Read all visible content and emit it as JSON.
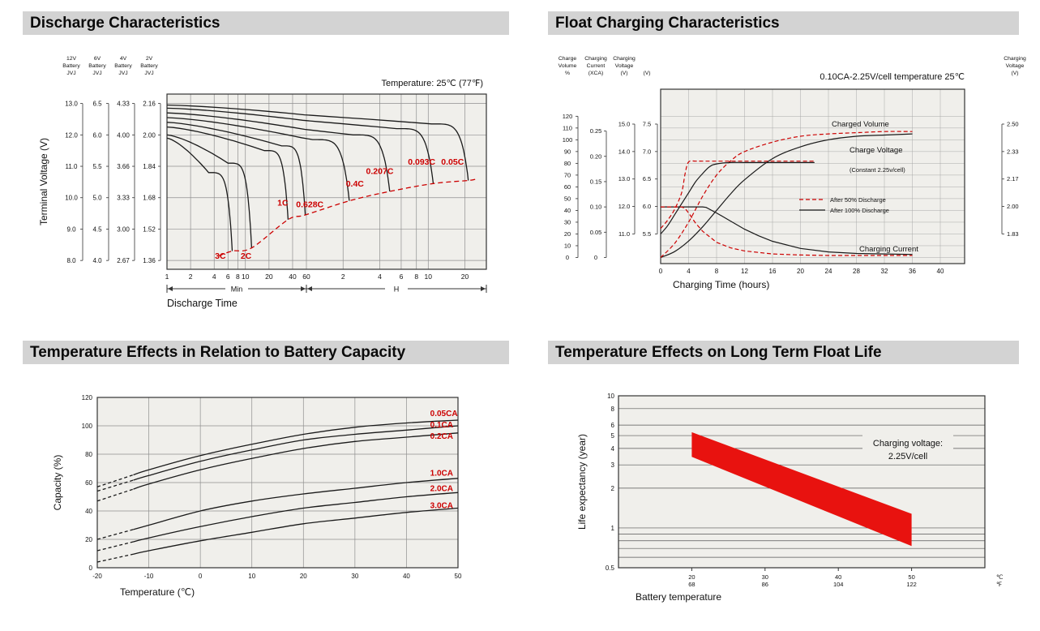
{
  "page": {
    "background": "#ffffff"
  },
  "chart_data": [
    {
      "id": "discharge-characteristics",
      "type": "line",
      "title": "Discharge Characteristics",
      "temperature_note": "Temperature: 25℃ (77℉)",
      "ylabel": "Terminal Voltage (V)",
      "xlabel": "Discharge Time",
      "x_section_labels": [
        "Min",
        "H"
      ],
      "x_ticks_min": [
        1,
        2,
        4,
        6,
        8,
        10,
        20,
        40,
        60
      ],
      "x_ticks_hours": [
        2,
        4,
        6,
        8,
        10,
        20
      ],
      "voltage_scales": [
        {
          "header": [
            "12V",
            "Battery",
            "JVJ"
          ],
          "ticks": [
            "13.0",
            "12.0",
            "11.0",
            "10.0",
            "9.0",
            "8.0"
          ]
        },
        {
          "header": [
            "6V",
            "Battery",
            "JVJ"
          ],
          "ticks": [
            "6.5",
            "6.0",
            "5.5",
            "5.0",
            "4.5",
            "4.0"
          ]
        },
        {
          "header": [
            "4V",
            "Battery",
            "JVJ"
          ],
          "ticks": [
            "4.33",
            "4.00",
            "3.66",
            "3.33",
            "3.00",
            "2.67"
          ]
        },
        {
          "header": [
            "2V",
            "Battery",
            "JVJ"
          ],
          "ticks": [
            "2.16",
            "2.00",
            "1.84",
            "1.68",
            "1.52",
            "1.36"
          ]
        }
      ],
      "grid_voltages": [
        13.0,
        12.0,
        11.0,
        10.0,
        9.0,
        8.0
      ],
      "curve_color": "#1a1a1a",
      "cutoff_color": "#cc0000",
      "curves": [
        {
          "rate": "3C",
          "t_end_min": 6.8,
          "v_start": 11.9,
          "v_plateau": 10.8,
          "v_cutoff": 8.3,
          "label_t": 4.8,
          "label_v": 8.05
        },
        {
          "rate": "2C",
          "t_end_min": 12,
          "v_start": 12.0,
          "v_plateau": 11.1,
          "v_cutoff": 8.4,
          "label_t": 10.2,
          "label_v": 8.05
        },
        {
          "rate": "1C",
          "t_end_min": 35,
          "v_start": 12.25,
          "v_plateau": 11.5,
          "v_cutoff": 9.3,
          "label_t": 30,
          "label_v": 9.75
        },
        {
          "rate": "0.628C",
          "t_end_min": 58,
          "v_start": 12.4,
          "v_plateau": 11.65,
          "v_cutoff": 9.45,
          "label_t": 64,
          "label_v": 9.7
        },
        {
          "rate": "0.4C",
          "t_end_min": 135,
          "v_start": 12.55,
          "v_plateau": 11.85,
          "v_cutoff": 9.9,
          "label_t": 150,
          "label_v": 10.35
        },
        {
          "rate": "0.207C",
          "t_end_min": 290,
          "v_start": 12.7,
          "v_plateau": 12.0,
          "v_cutoff": 10.2,
          "label_t": 240,
          "label_v": 10.75
        },
        {
          "rate": "0.093C",
          "t_end_min": 660,
          "v_start": 12.85,
          "v_plateau": 12.2,
          "v_cutoff": 10.45,
          "label_t": 530,
          "label_v": 11.05
        },
        {
          "rate": "0.05C",
          "t_end_min": 1280,
          "v_start": 12.95,
          "v_plateau": 12.35,
          "v_cutoff": 10.55,
          "label_t": 950,
          "label_v": 11.05
        }
      ]
    },
    {
      "id": "float-charging-characteristics",
      "type": "line",
      "title": "Float Charging Characteristics",
      "condition_note": "0.10CA-2.25V/cell  temperature 25℃",
      "xlabel": "Charging Time (hours)",
      "x_ticks": [
        0,
        4,
        8,
        12,
        16,
        20,
        24,
        28,
        32,
        36,
        40
      ],
      "left_scales": [
        {
          "header": [
            "Charge",
            "Volume",
            "%"
          ],
          "ticks": [
            "120",
            "110",
            "100",
            "90",
            "80",
            "70",
            "60",
            "50",
            "40",
            "30",
            "20",
            "10",
            "0"
          ]
        },
        {
          "header": [
            "Charging",
            "Current",
            "(XCA)"
          ],
          "ticks": [
            "0.25",
            "0.20",
            "0.15",
            "0.10",
            "0.05",
            "0"
          ]
        },
        {
          "header": [
            "Charging",
            "Voltage",
            "(V)"
          ],
          "ticks": [
            "15.0",
            "14.0",
            "13.0",
            "12.0",
            "11.0"
          ]
        },
        {
          "header": [
            "",
            "",
            "(V)"
          ],
          "ticks": [
            "7.5",
            "7.0",
            "6.5",
            "6.0",
            "5.5"
          ]
        }
      ],
      "right_scale": {
        "header": [
          "Charging",
          "Voltage",
          "(V)"
        ],
        "ticks": [
          "2.50",
          "2.33",
          "2.17",
          "2.00",
          "1.83"
        ]
      },
      "legend": [
        {
          "label": "After  50% Discharge",
          "style": "dashed",
          "color": "#cc0000"
        },
        {
          "label": "After 100% Discharge",
          "style": "solid",
          "color": "#1a1a1a"
        }
      ],
      "labels": {
        "charged_volume": "Charged Volume",
        "charge_voltage": "Charge Voltage",
        "charge_voltage_sub": "(Constant 2.25v/cell)",
        "charging_current": "Charging Current"
      },
      "series": [
        {
          "name": "charged-volume-after-100pct",
          "axis": "volume",
          "style": "solid",
          "color": "#1a1a1a",
          "x": [
            0,
            2,
            4,
            6,
            8,
            10,
            12,
            16,
            20,
            24,
            28,
            32,
            36
          ],
          "y": [
            0,
            5,
            14,
            26,
            40,
            54,
            66,
            84,
            94,
            100,
            103,
            104,
            105
          ]
        },
        {
          "name": "charged-volume-after-50pct",
          "axis": "volume",
          "style": "dashed",
          "color": "#cc0000",
          "x": [
            0,
            2,
            4,
            6,
            8,
            10,
            12,
            16,
            20,
            24,
            28,
            32,
            36
          ],
          "y": [
            0,
            12,
            30,
            52,
            70,
            82,
            90,
            98,
            103,
            105,
            106,
            107,
            107
          ]
        },
        {
          "name": "charge-voltage-after-100pct",
          "axis": "voltage12",
          "style": "solid",
          "color": "#1a1a1a",
          "x": [
            0,
            1,
            2,
            3,
            4,
            5,
            6,
            7,
            8,
            10,
            12,
            16,
            20,
            22
          ],
          "y": [
            11.0,
            11.3,
            11.7,
            12.1,
            12.5,
            12.9,
            13.2,
            13.45,
            13.55,
            13.6,
            13.6,
            13.6,
            13.6,
            13.6
          ]
        },
        {
          "name": "charge-voltage-after-50pct",
          "axis": "voltage12",
          "style": "dashed",
          "color": "#cc0000",
          "x": [
            0,
            1,
            2,
            3,
            3.5,
            4,
            5,
            6,
            8,
            12,
            16,
            20,
            22
          ],
          "y": [
            11.2,
            11.5,
            11.9,
            12.5,
            13.2,
            13.62,
            13.65,
            13.65,
            13.65,
            13.65,
            13.65,
            13.65,
            13.65
          ]
        },
        {
          "name": "charging-current-after-100pct",
          "axis": "current",
          "style": "solid",
          "color": "#1a1a1a",
          "x": [
            0,
            2,
            4,
            6,
            6.5,
            8,
            10,
            12,
            14,
            16,
            20,
            24,
            28,
            32,
            36
          ],
          "y": [
            0.1,
            0.1,
            0.1,
            0.1,
            0.099,
            0.088,
            0.072,
            0.056,
            0.043,
            0.032,
            0.018,
            0.011,
            0.008,
            0.007,
            0.006
          ]
        },
        {
          "name": "charging-current-after-50pct",
          "axis": "current",
          "style": "dashed",
          "color": "#cc0000",
          "x": [
            0,
            1,
            2,
            3,
            3.5,
            4,
            5,
            6,
            8,
            10,
            12,
            16,
            20,
            24,
            28,
            32,
            36
          ],
          "y": [
            0.1,
            0.1,
            0.1,
            0.1,
            0.097,
            0.088,
            0.068,
            0.052,
            0.03,
            0.019,
            0.013,
            0.007,
            0.005,
            0.004,
            0.004,
            0.004,
            0.004
          ]
        }
      ]
    },
    {
      "id": "temperature-effects-battery-capacity",
      "type": "line",
      "title": "Temperature Effects in Relation to Battery Capacity",
      "ylabel": "Capacity (%)",
      "xlabel": "Temperature (℃)",
      "x_ticks": [
        -20,
        -10,
        0,
        10,
        20,
        30,
        40,
        50
      ],
      "y_ticks": [
        0,
        20,
        40,
        60,
        80,
        100,
        120
      ],
      "curve_color": "#1a1a1a",
      "label_color": "#cc0000",
      "dashed_below_c": -13,
      "series": [
        {
          "name": "0.05CA",
          "x": [
            -20,
            -10,
            0,
            10,
            20,
            30,
            40,
            50
          ],
          "y": [
            57,
            69,
            79,
            87,
            94,
            99,
            102,
            104
          ],
          "label_y": 107
        },
        {
          "name": "0.1CA",
          "x": [
            -20,
            -10,
            0,
            10,
            20,
            30,
            40,
            50
          ],
          "y": [
            54,
            65,
            75,
            83,
            90,
            94,
            97,
            100
          ],
          "label_y": 99
        },
        {
          "name": "0.2CA",
          "x": [
            -20,
            -10,
            0,
            10,
            20,
            30,
            40,
            50
          ],
          "y": [
            47,
            59,
            69,
            77,
            84,
            89,
            92,
            95
          ],
          "label_y": 91
        },
        {
          "name": "1.0CA",
          "x": [
            -20,
            -10,
            0,
            10,
            20,
            30,
            40,
            50
          ],
          "y": [
            20,
            30,
            40,
            47,
            52,
            56,
            60,
            63
          ],
          "label_y": 65
        },
        {
          "name": "2.0CA",
          "x": [
            -20,
            -10,
            0,
            10,
            20,
            30,
            40,
            50
          ],
          "y": [
            12,
            21,
            29,
            36,
            42,
            46,
            50,
            53
          ],
          "label_y": 54
        },
        {
          "name": "3.0CA",
          "x": [
            -20,
            -10,
            0,
            10,
            20,
            30,
            40,
            50
          ],
          "y": [
            4,
            12,
            19,
            25,
            31,
            35,
            39,
            42
          ],
          "label_y": 42
        }
      ]
    },
    {
      "id": "temperature-effects-float-life",
      "type": "area",
      "title": "Temperature Effects on Long Term Float Life",
      "ylabel": "Life expectancy (year)",
      "xlabel": "Battery temperature",
      "annotation": [
        "Charging voltage:",
        "2.25V/cell"
      ],
      "y_ticks": [
        "10",
        "8",
        "6",
        "5",
        "4",
        "3",
        "2",
        "1",
        "0.5"
      ],
      "y_gridlines": [
        8,
        6,
        5,
        4,
        3,
        2,
        1,
        0.9,
        0.8,
        0.7,
        0.6
      ],
      "x_ticks_c": [
        "20",
        "30",
        "40",
        "50"
      ],
      "x_ticks_f": [
        "68",
        "86",
        "104",
        "122"
      ],
      "x_unit_c": "℃",
      "x_unit_f": "℉",
      "band": {
        "color": "#e8120f",
        "points": [
          {
            "x": 20,
            "upper": 5.3,
            "lower": 3.45
          },
          {
            "x": 50,
            "upper": 1.28,
            "lower": 0.73
          }
        ]
      }
    }
  ]
}
